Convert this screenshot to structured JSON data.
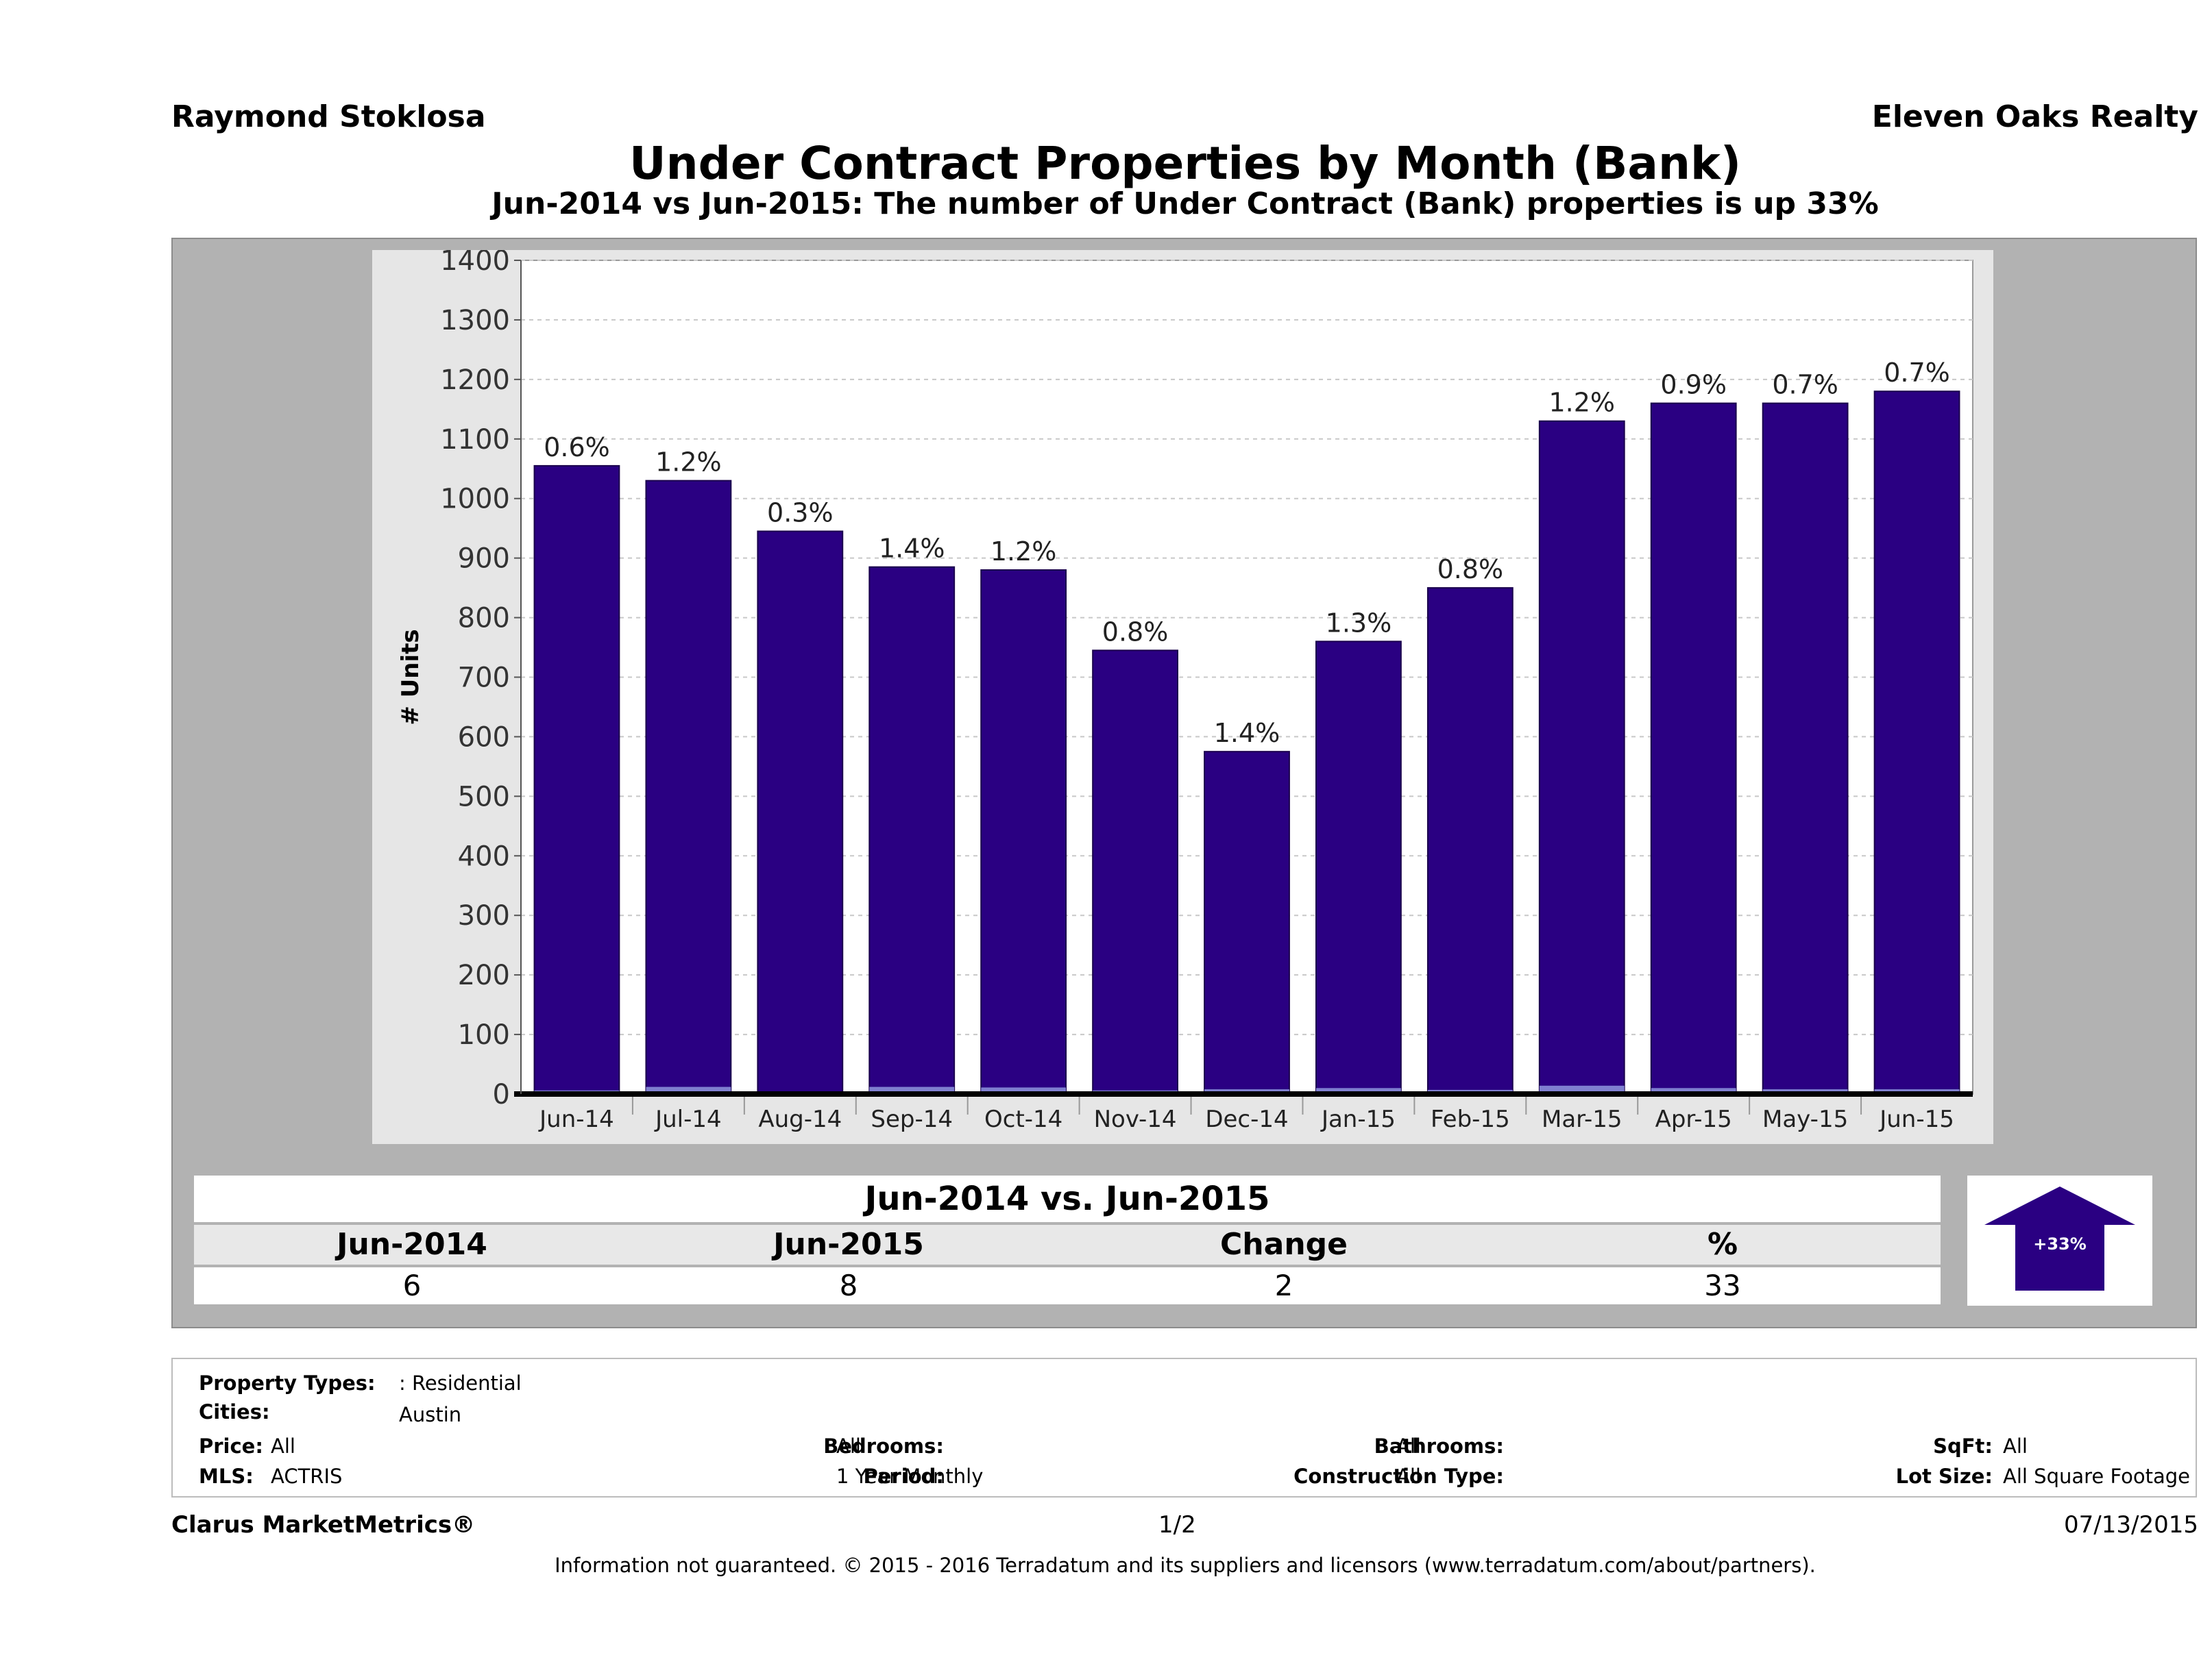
{
  "header": {
    "agent": "Raymond Stoklosa",
    "company": "Eleven Oaks Realty",
    "title": "Under Contract Properties by Month (Bank)",
    "subtitle": "Jun-2014 vs Jun-2015: The number of Under Contract (Bank)  properties is up 33%"
  },
  "chart_data": {
    "type": "bar",
    "title": "Under Contract Properties by Month (Bank)",
    "ylabel": "# Units",
    "xlabel": "",
    "ylim": [
      0,
      1400
    ],
    "yticks": [
      0,
      100,
      200,
      300,
      400,
      500,
      600,
      700,
      800,
      900,
      1000,
      1100,
      1200,
      1300,
      1400
    ],
    "grid": true,
    "categories": [
      "Jun-14",
      "Jul-14",
      "Aug-14",
      "Sep-14",
      "Oct-14",
      "Nov-14",
      "Dec-14",
      "Jan-15",
      "Feb-15",
      "Mar-15",
      "Apr-15",
      "May-15",
      "Jun-15"
    ],
    "values": [
      1055,
      1030,
      945,
      885,
      880,
      745,
      575,
      760,
      850,
      1130,
      1160,
      1160,
      1180
    ],
    "bank_values": [
      6,
      12,
      3,
      12,
      11,
      6,
      8,
      10,
      7,
      14,
      10,
      8,
      8
    ],
    "data_labels": [
      "0.6%",
      "1.2%",
      "0.3%",
      "1.4%",
      "1.2%",
      "0.8%",
      "1.4%",
      "1.3%",
      "0.8%",
      "1.2%",
      "0.9%",
      "0.7%",
      "0.7%"
    ],
    "colors": {
      "bar": "#2a0082",
      "bank": "#7f7fd0",
      "panel": "#e6e6e6",
      "plot": "#ffffff",
      "grid": "#c8c8c8"
    }
  },
  "comparison": {
    "heading": "Jun-2014 vs. Jun-2015",
    "columns": [
      "Jun-2014",
      "Jun-2015",
      "Change",
      "%"
    ],
    "values": [
      "6",
      "8",
      "2",
      "33"
    ],
    "badge": "+33%",
    "badge_color": "#2a0082"
  },
  "filters": {
    "property_types_label": "Property Types:",
    "property_types_value": ": Residential",
    "cities_label": "Cities:",
    "cities_value": "Austin",
    "price_label": "Price:",
    "price_value": "All",
    "bedrooms_label": "Bedrooms:",
    "bedrooms_value": "All",
    "bathrooms_label": "Bathrooms:",
    "bathrooms_value": "All",
    "sqft_label": "SqFt:",
    "sqft_value": "All",
    "mls_label": "MLS:",
    "mls_value": "ACTRIS",
    "period_label": "Period:",
    "period_value": "1 Year Monthly",
    "construction_label": "Construction Type:",
    "construction_value": "All",
    "lot_label": "Lot Size:",
    "lot_value": "All Square Footage"
  },
  "footer": {
    "brand": "Clarus MarketMetrics®",
    "page": "1/2",
    "date": "07/13/2015",
    "disclaimer": "Information not guaranteed. © 2015 - 2016 Terradatum and its suppliers and licensors (www.terradatum.com/about/partners)."
  }
}
